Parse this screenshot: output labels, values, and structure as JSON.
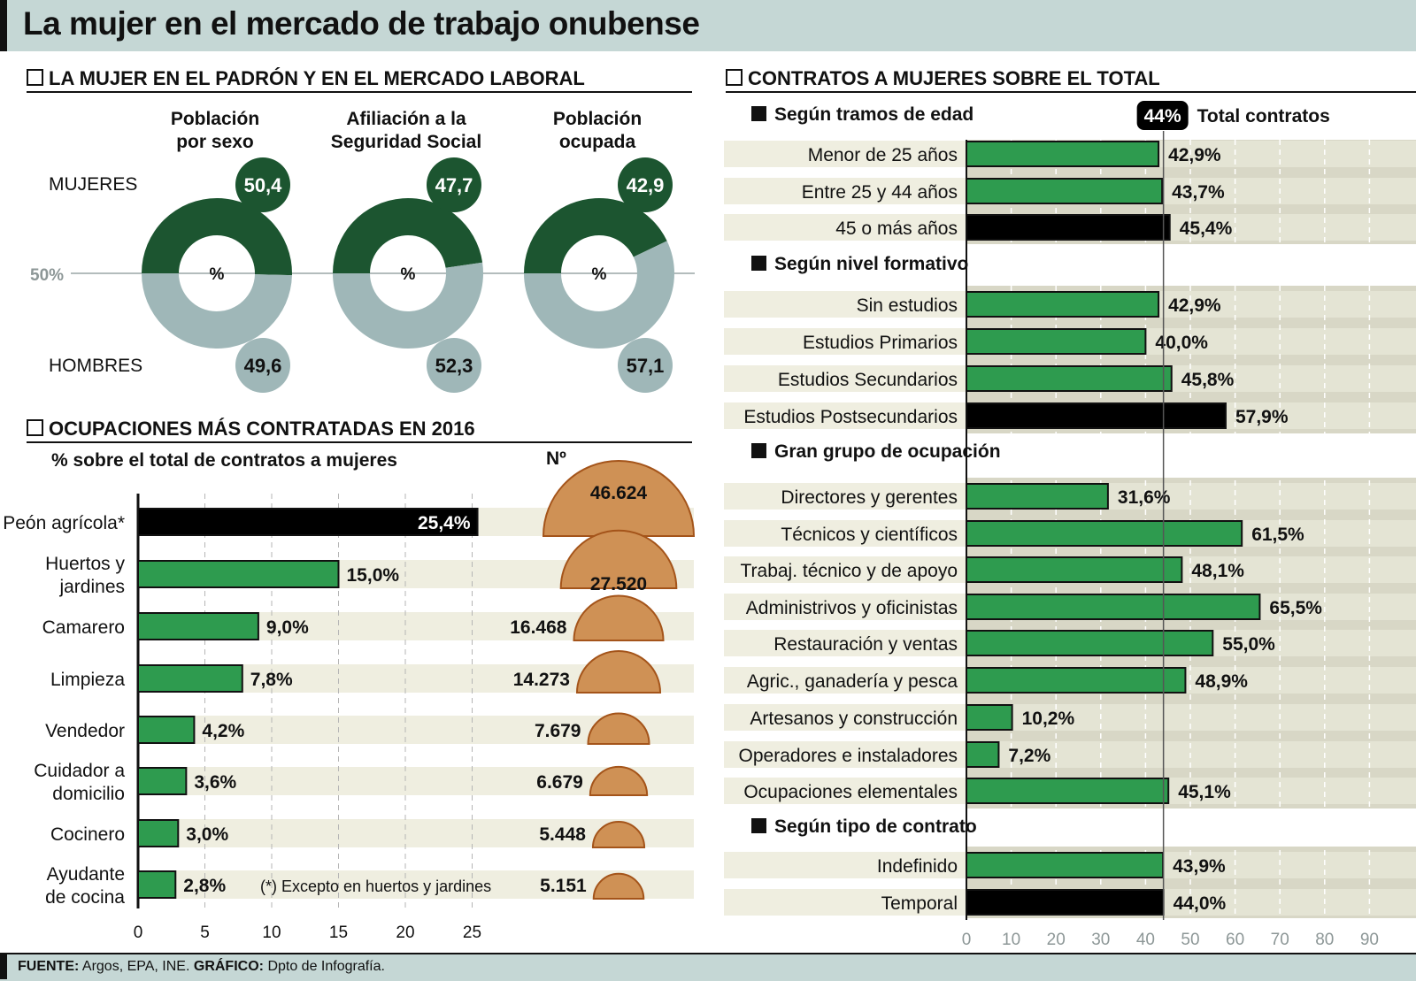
{
  "title": "La mujer en el mercado de trabajo onubense",
  "footer": {
    "source_label": "FUENTE:",
    "source_text": "Argos, EPA, INE.",
    "graphic_label": "GRÁFICO:",
    "graphic_text": "Dpto de Infografía."
  },
  "chart_data": [
    {
      "type": "pie",
      "section_title": "LA MUJER EN EL PADRÓN Y EN EL MERCADO LABORAL",
      "row_labels": {
        "women": "MUJERES",
        "men": "HOMBRES"
      },
      "reference_label": "50%",
      "center_label": "%",
      "donuts": [
        {
          "title_lines": [
            "Población",
            "por sexo"
          ],
          "women": 50.4,
          "men": 49.6,
          "women_label": "50,4",
          "men_label": "49,6"
        },
        {
          "title_lines": [
            "Afiliación a la",
            "Seguridad Social"
          ],
          "women": 47.7,
          "men": 52.3,
          "women_label": "47,7",
          "men_label": "52,3"
        },
        {
          "title_lines": [
            "Población",
            "ocupada"
          ],
          "women": 42.9,
          "men": 57.1,
          "women_label": "42,9",
          "men_label": "57,1"
        }
      ],
      "colors": {
        "women": "#1c5530",
        "men": "#9fb7b8"
      }
    },
    {
      "type": "bar",
      "section_title": "OCUPACIONES MÁS CONTRATADAS EN 2016",
      "subtitle": "% sobre el total de contratos a mujeres",
      "count_header": "Nº",
      "note": "(*) Excepto en huertos y jardines",
      "xlim": [
        0,
        26
      ],
      "xticks": [
        0,
        5,
        10,
        15,
        20,
        25
      ],
      "categories": [
        {
          "label_lines": [
            "Peón agrícola*"
          ],
          "value": 25.4,
          "value_label": "25,4%",
          "count": 46624,
          "count_label": "46.624",
          "highlight": true
        },
        {
          "label_lines": [
            "Huertos y",
            "jardines"
          ],
          "value": 15.0,
          "value_label": "15,0%",
          "count": 27520,
          "count_label": "27.520",
          "highlight": false
        },
        {
          "label_lines": [
            "Camarero"
          ],
          "value": 9.0,
          "value_label": "9,0%",
          "count": 16468,
          "count_label": "16.468",
          "highlight": false
        },
        {
          "label_lines": [
            "Limpieza"
          ],
          "value": 7.8,
          "value_label": "7,8%",
          "count": 14273,
          "count_label": "14.273",
          "highlight": false
        },
        {
          "label_lines": [
            "Vendedor"
          ],
          "value": 4.2,
          "value_label": "4,2%",
          "count": 7679,
          "count_label": "7.679",
          "highlight": false
        },
        {
          "label_lines": [
            "Cuidador a",
            "domicilio"
          ],
          "value": 3.6,
          "value_label": "3,6%",
          "count": 6679,
          "count_label": "6.679",
          "highlight": false
        },
        {
          "label_lines": [
            "Cocinero"
          ],
          "value": 3.0,
          "value_label": "3,0%",
          "count": 5448,
          "count_label": "5.448",
          "highlight": false
        },
        {
          "label_lines": [
            "Ayudante",
            "de cocina"
          ],
          "value": 2.8,
          "value_label": "2,8%",
          "count": 5151,
          "count_label": "5.151",
          "highlight": false
        }
      ],
      "colors": {
        "bar": "#2e9b4f",
        "highlight": "#000000",
        "count_fill": "#cf9155",
        "count_stroke": "#a4541a",
        "band": "#efeee0"
      }
    },
    {
      "type": "bar",
      "section_title": "CONTRATOS A MUJERES SOBRE EL TOTAL",
      "reference": {
        "value": 44,
        "badge": "44%",
        "label": "Total contratos"
      },
      "xlim": [
        0,
        100
      ],
      "xticks": [
        0,
        10,
        20,
        30,
        40,
        50,
        60,
        70,
        80,
        90
      ],
      "groups": [
        {
          "title": "Según tramos de edad",
          "items": [
            {
              "label": "Menor de 25 años",
              "value": 42.9,
              "value_label": "42,9%",
              "highlight": false
            },
            {
              "label": "Entre 25 y 44 años",
              "value": 43.7,
              "value_label": "43,7%",
              "highlight": false
            },
            {
              "label": "45 o más años",
              "value": 45.4,
              "value_label": "45,4%",
              "highlight": true
            }
          ]
        },
        {
          "title": "Según nivel formativo",
          "items": [
            {
              "label": "Sin estudios",
              "value": 42.9,
              "value_label": "42,9%",
              "highlight": false
            },
            {
              "label": "Estudios Primarios",
              "value": 40.0,
              "value_label": "40,0%",
              "highlight": false
            },
            {
              "label": "Estudios Secundarios",
              "value": 45.8,
              "value_label": "45,8%",
              "highlight": false
            },
            {
              "label": "Estudios Postsecundarios",
              "value": 57.9,
              "value_label": "57,9%",
              "highlight": true
            }
          ]
        },
        {
          "title": "Gran grupo de ocupación",
          "items": [
            {
              "label": "Directores y gerentes",
              "value": 31.6,
              "value_label": "31,6%",
              "highlight": false
            },
            {
              "label": "Técnicos y científicos",
              "value": 61.5,
              "value_label": "61,5%",
              "highlight": false
            },
            {
              "label": "Trabaj. técnico y de apoyo",
              "value": 48.1,
              "value_label": "48,1%",
              "highlight": false
            },
            {
              "label": "Administrivos y oficinistas",
              "value": 65.5,
              "value_label": "65,5%",
              "highlight": false
            },
            {
              "label": "Restauración y ventas",
              "value": 55.0,
              "value_label": "55,0%",
              "highlight": false
            },
            {
              "label": "Agric., ganadería y pesca",
              "value": 48.9,
              "value_label": "48,9%",
              "highlight": false
            },
            {
              "label": "Artesanos y construcción",
              "value": 10.2,
              "value_label": "10,2%",
              "highlight": false
            },
            {
              "label": "Operadores e instaladores",
              "value": 7.2,
              "value_label": "7,2%",
              "highlight": false
            },
            {
              "label": "Ocupaciones elementales",
              "value": 45.1,
              "value_label": "45,1%",
              "highlight": false
            }
          ]
        },
        {
          "title": "Según tipo de contrato",
          "items": [
            {
              "label": "Indefinido",
              "value": 43.9,
              "value_label": "43,9%",
              "highlight": false
            },
            {
              "label": "Temporal",
              "value": 44.0,
              "value_label": "44,0%",
              "highlight": true
            }
          ]
        }
      ],
      "colors": {
        "bar": "#2e9b4f",
        "highlight": "#000000",
        "band": "#efeee0",
        "plot_bg": "#d8d7c6"
      }
    }
  ]
}
